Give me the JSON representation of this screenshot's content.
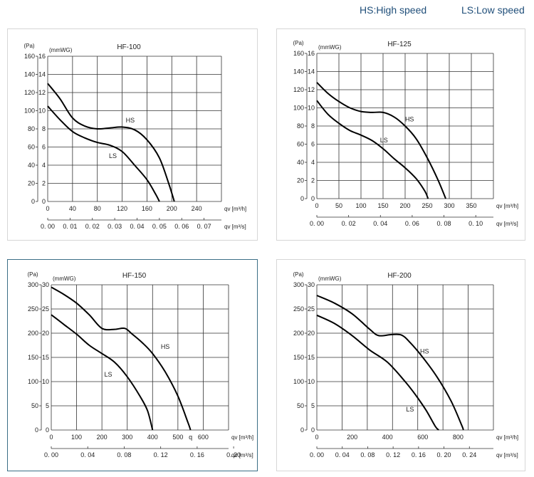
{
  "legend": {
    "hs": "HS:High speed",
    "ls": "LS:Low speed"
  },
  "chart_data": [
    {
      "type": "line",
      "title": "HF-100",
      "y_pa_label": "(Pa)",
      "y_mm_label": "(mmWG)",
      "x_top_label": "qv [m³/h]",
      "x_bottom_label": "qv [m³/s]",
      "x_lim": [
        0,
        280
      ],
      "y_lim": [
        0,
        160
      ],
      "y_pa_ticks": [
        "160",
        "140",
        "120",
        "100",
        "80",
        "60",
        "40",
        "20",
        "0"
      ],
      "y_mm_ticks": [
        "16",
        "14",
        "12",
        "10",
        "8",
        "6",
        "4",
        "2",
        "0"
      ],
      "x_top_ticks": [
        "0",
        "40",
        "80",
        "120",
        "160",
        "200",
        "240"
      ],
      "x_top_tick_values": [
        0,
        40,
        80,
        120,
        160,
        200,
        240
      ],
      "x_bottom_ticks": [
        "0. 00",
        "0. 01",
        "0. 02",
        "0. 03",
        "0. 04",
        "0. 05",
        "0. 06",
        "0. 07"
      ],
      "x_bottom_tick_values": [
        0,
        36,
        72,
        108,
        144,
        180,
        216,
        252
      ],
      "series": [
        {
          "name": "HS",
          "label_at": [
            133,
            87
          ],
          "points": [
            [
              0,
              130
            ],
            [
              20,
              113
            ],
            [
              40,
              92
            ],
            [
              60,
              83
            ],
            [
              80,
              80
            ],
            [
              100,
              81
            ],
            [
              120,
              82
            ],
            [
              140,
              79
            ],
            [
              160,
              68
            ],
            [
              180,
              48
            ],
            [
              195,
              20
            ],
            [
              204,
              0
            ]
          ]
        },
        {
          "name": "LS",
          "label_at": [
            105,
            48
          ],
          "points": [
            [
              0,
              105
            ],
            [
              20,
              90
            ],
            [
              40,
              77
            ],
            [
              60,
              70
            ],
            [
              80,
              65
            ],
            [
              100,
              62
            ],
            [
              120,
              55
            ],
            [
              140,
              40
            ],
            [
              160,
              24
            ],
            [
              174,
              8
            ],
            [
              180,
              0
            ]
          ]
        }
      ]
    },
    {
      "type": "line",
      "title": "HF-125",
      "y_pa_label": "(Pa)",
      "y_mm_label": "(mmWG)",
      "x_top_label": "qv [m³/h]",
      "x_bottom_label": "qv [m³/s]",
      "x_lim": [
        0,
        400
      ],
      "y_lim": [
        0,
        160
      ],
      "y_pa_ticks": [
        "160",
        "140",
        "120",
        "100",
        "80",
        "60",
        "40",
        "20",
        "0"
      ],
      "y_mm_ticks": [
        "16",
        "14",
        "12",
        "10",
        "8",
        "6",
        "4",
        "2",
        "0"
      ],
      "x_top_ticks": [
        "0",
        "50",
        "100",
        "150",
        "200",
        "250",
        "300",
        "350"
      ],
      "x_top_tick_values": [
        0,
        50,
        100,
        150,
        200,
        250,
        300,
        350
      ],
      "x_bottom_ticks": [
        "0. 00",
        "0. 02",
        "0. 04",
        "0. 06",
        "0. 08",
        "0. 10"
      ],
      "x_bottom_tick_values": [
        0,
        72,
        144,
        216,
        288,
        360
      ],
      "series": [
        {
          "name": "HS",
          "label_at": [
            210,
            85
          ],
          "points": [
            [
              0,
              128
            ],
            [
              25,
              116
            ],
            [
              50,
              107
            ],
            [
              75,
              100
            ],
            [
              100,
              96
            ],
            [
              125,
              95
            ],
            [
              150,
              95
            ],
            [
              175,
              90
            ],
            [
              200,
              80
            ],
            [
              225,
              66
            ],
            [
              250,
              45
            ],
            [
              275,
              20
            ],
            [
              292,
              0
            ]
          ]
        },
        {
          "name": "LS",
          "label_at": [
            152,
            62
          ],
          "points": [
            [
              0,
              108
            ],
            [
              25,
              93
            ],
            [
              50,
              83
            ],
            [
              75,
              75
            ],
            [
              100,
              70
            ],
            [
              125,
              64
            ],
            [
              150,
              55
            ],
            [
              175,
              44
            ],
            [
              200,
              34
            ],
            [
              225,
              22
            ],
            [
              245,
              8
            ],
            [
              252,
              0
            ]
          ]
        }
      ]
    },
    {
      "type": "line",
      "title": "HF-150",
      "y_pa_label": "(Pa)",
      "y_mm_label": "(mmWG)",
      "x_top_label": "qv [m³/h]",
      "x_bottom_label": "qv [m³/s]",
      "x_lim": [
        0,
        700
      ],
      "y_lim": [
        0,
        300
      ],
      "y_pa_ticks": [
        "300",
        "250",
        "200",
        "150",
        "100",
        "50",
        "0"
      ],
      "y_mm_ticks": [
        "30",
        "25",
        "20",
        "15",
        "10",
        "5",
        "0"
      ],
      "x_top_ticks": [
        "0",
        "100",
        "200",
        "300",
        "400",
        "500",
        "q",
        "600"
      ],
      "x_top_tick_values": [
        0,
        100,
        200,
        300,
        400,
        500,
        550,
        600
      ],
      "x_bottom_ticks": [
        "0. 00",
        "0. 04",
        "0. 08",
        "0. 12",
        "0. 16",
        "0. 20"
      ],
      "x_bottom_tick_values": [
        0,
        144,
        288,
        432,
        576,
        720
      ],
      "series": [
        {
          "name": "HS",
          "label_at": [
            450,
            168
          ],
          "points": [
            [
              0,
              295
            ],
            [
              50,
              280
            ],
            [
              100,
              262
            ],
            [
              150,
              238
            ],
            [
              200,
              210
            ],
            [
              250,
              208
            ],
            [
              290,
              210
            ],
            [
              320,
              198
            ],
            [
              360,
              180
            ],
            [
              400,
              158
            ],
            [
              450,
              120
            ],
            [
              500,
              70
            ],
            [
              540,
              15
            ],
            [
              550,
              0
            ]
          ]
        },
        {
          "name": "LS",
          "label_at": [
            225,
            110
          ],
          "points": [
            [
              0,
              238
            ],
            [
              50,
              218
            ],
            [
              100,
              198
            ],
            [
              150,
              175
            ],
            [
              200,
              158
            ],
            [
              250,
              140
            ],
            [
              300,
              110
            ],
            [
              350,
              70
            ],
            [
              380,
              40
            ],
            [
              400,
              0
            ]
          ]
        }
      ]
    },
    {
      "type": "line",
      "title": "HF-200",
      "y_pa_label": "(Pa)",
      "y_mm_label": "(mmWG)",
      "x_top_label": "qv [m³/h]",
      "x_bottom_label": "qv [m³/s]",
      "x_lim": [
        0,
        1000
      ],
      "y_lim": [
        0,
        300
      ],
      "y_pa_ticks": [
        "300",
        "250",
        "200",
        "150",
        "100",
        "50",
        "0"
      ],
      "y_mm_ticks": [
        "30",
        "25",
        "20",
        "15",
        "10",
        "5",
        "0"
      ],
      "x_top_ticks": [
        "0",
        "200",
        "400",
        "600",
        "800"
      ],
      "x_top_tick_values": [
        0,
        200,
        400,
        600,
        800
      ],
      "x_bottom_ticks": [
        "0. 00",
        "0. 04",
        "0. 08",
        "0. 12",
        "0. 16",
        "0. 20",
        "0. 24"
      ],
      "x_bottom_tick_values": [
        0,
        144,
        288,
        432,
        576,
        720,
        864
      ],
      "series": [
        {
          "name": "HS",
          "label_at": [
            610,
            158
          ],
          "points": [
            [
              0,
              278
            ],
            [
              100,
              262
            ],
            [
              200,
              240
            ],
            [
              300,
              208
            ],
            [
              350,
              195
            ],
            [
              420,
              197
            ],
            [
              480,
              196
            ],
            [
              530,
              180
            ],
            [
              600,
              150
            ],
            [
              680,
              110
            ],
            [
              760,
              60
            ],
            [
              820,
              10
            ],
            [
              830,
              0
            ]
          ]
        },
        {
          "name": "LS",
          "label_at": [
            528,
            38
          ],
          "points": [
            [
              0,
              237
            ],
            [
              100,
              220
            ],
            [
              200,
              195
            ],
            [
              300,
              165
            ],
            [
              400,
              140
            ],
            [
              500,
              100
            ],
            [
              560,
              72
            ],
            [
              620,
              40
            ],
            [
              670,
              8
            ],
            [
              690,
              0
            ]
          ]
        }
      ]
    }
  ]
}
